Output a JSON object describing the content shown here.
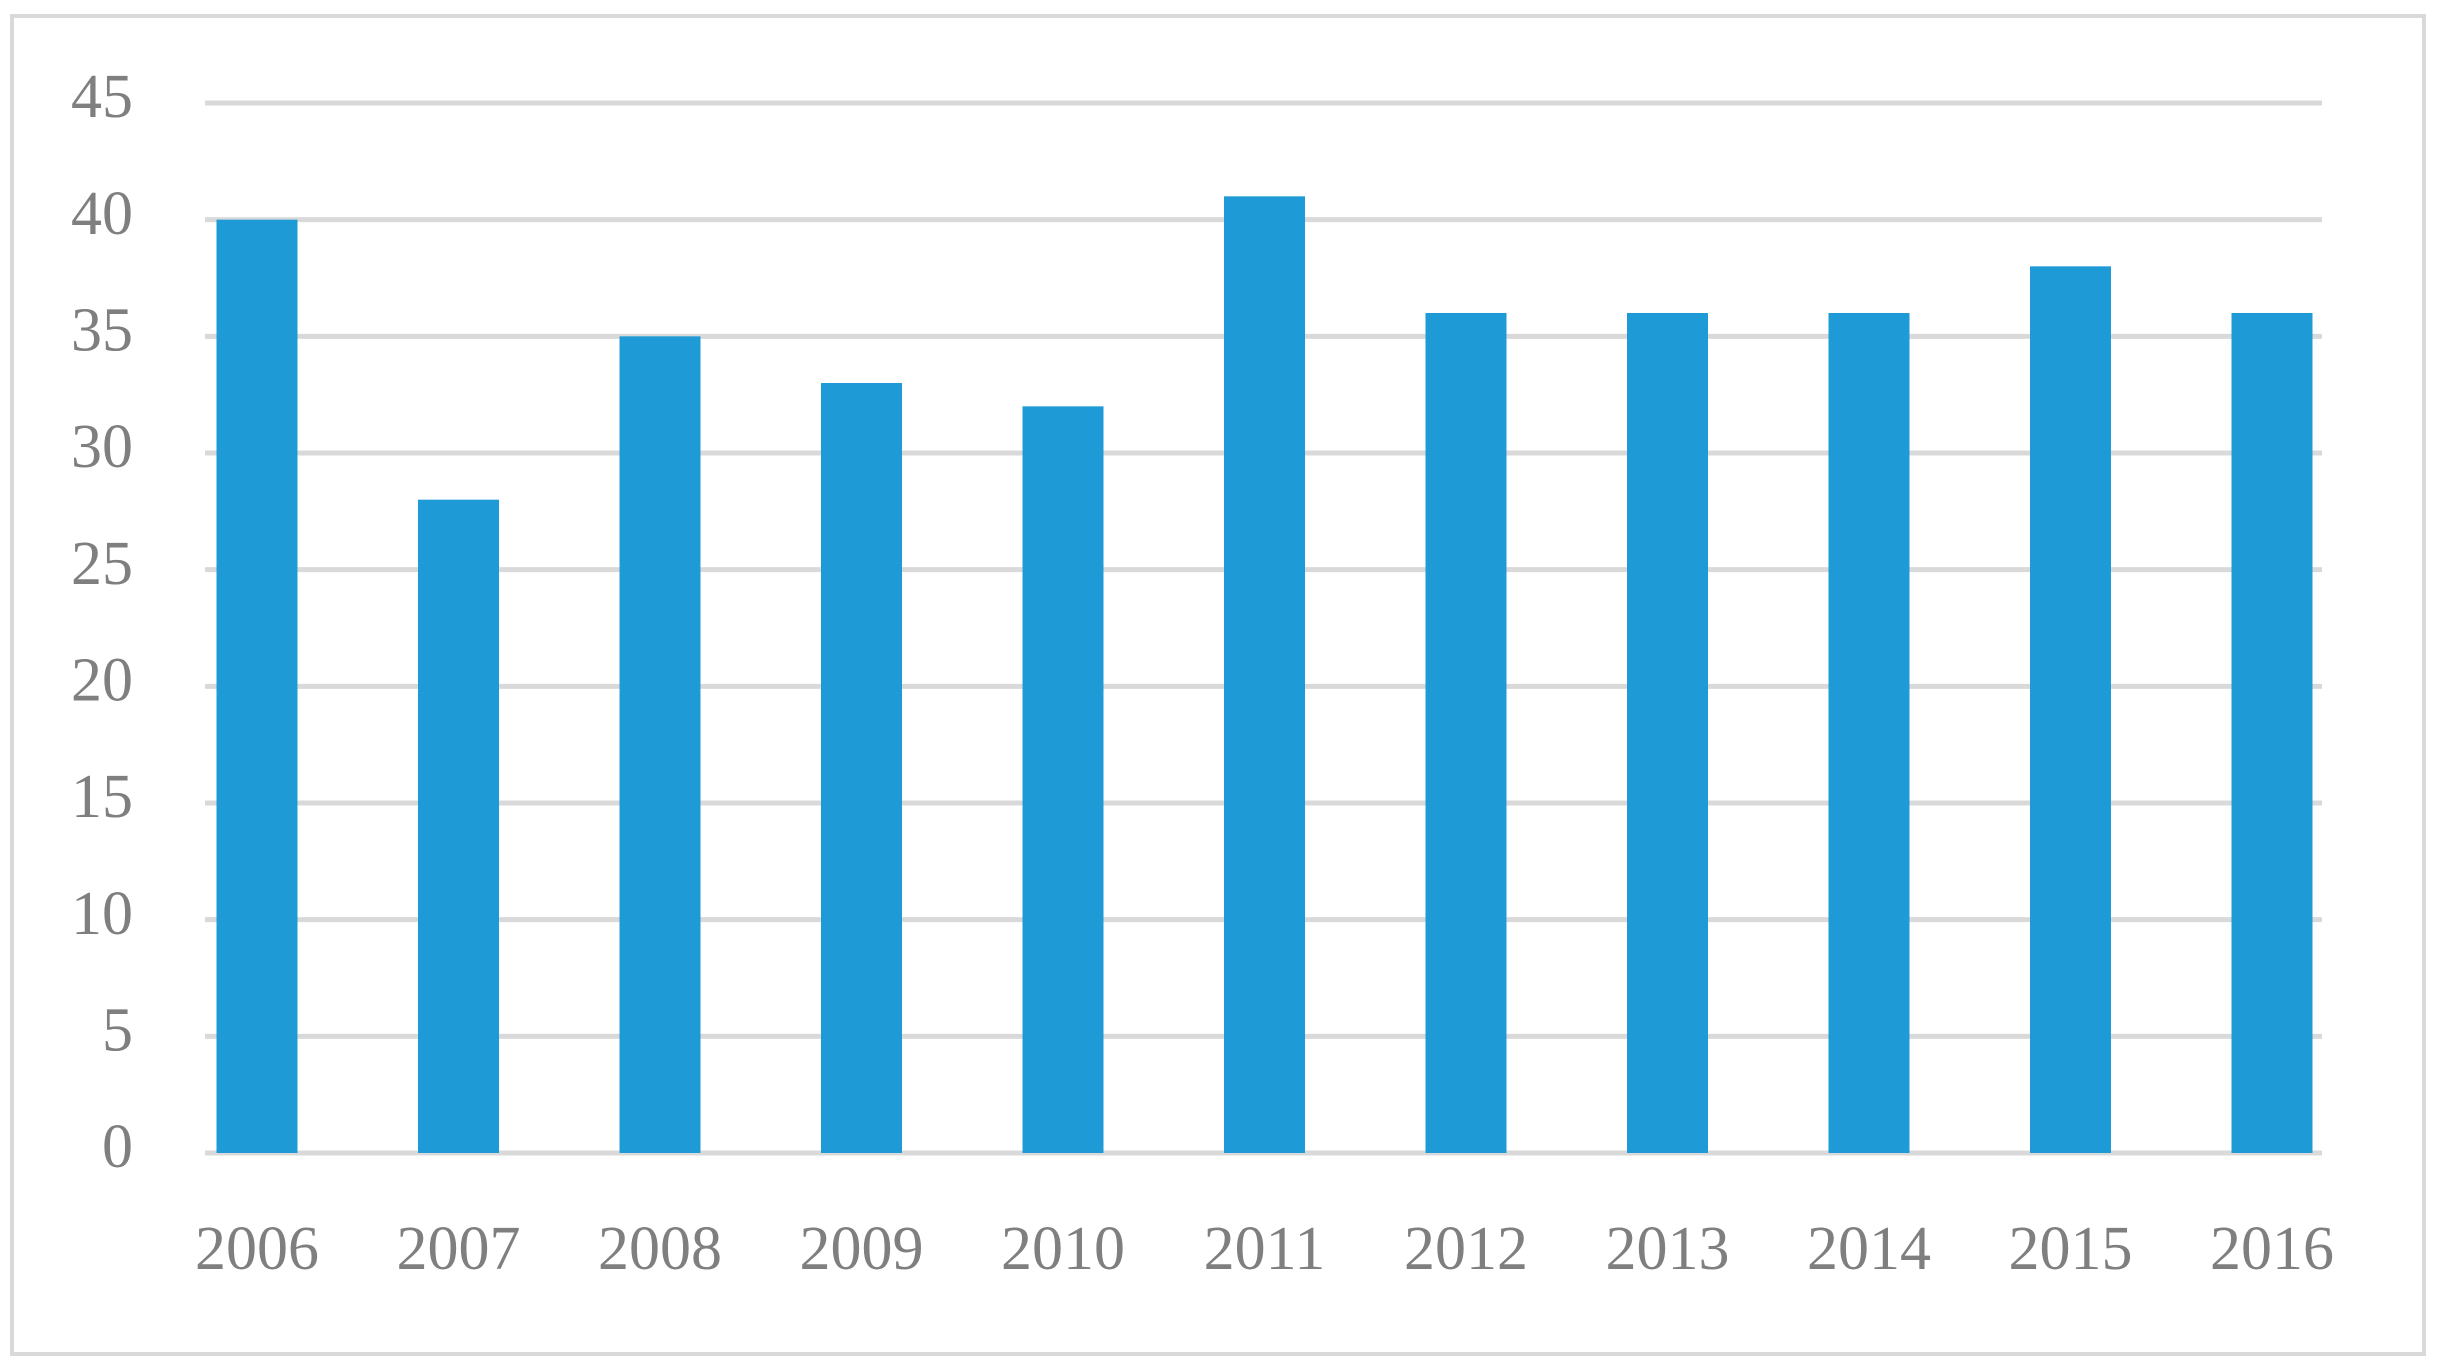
{
  "chart_data": {
    "type": "bar",
    "categories": [
      "2006",
      "2007",
      "2008",
      "2009",
      "2010",
      "2011",
      "2012",
      "2013",
      "2014",
      "2015",
      "2016"
    ],
    "values": [
      40,
      28,
      35,
      33,
      32,
      41,
      36,
      36,
      36,
      38,
      36
    ],
    "color": "#1e9bd7",
    "ylim": [
      0,
      45
    ],
    "yticks": [
      0,
      5,
      10,
      15,
      20,
      25,
      30,
      35,
      40,
      45
    ],
    "grid": true
  }
}
